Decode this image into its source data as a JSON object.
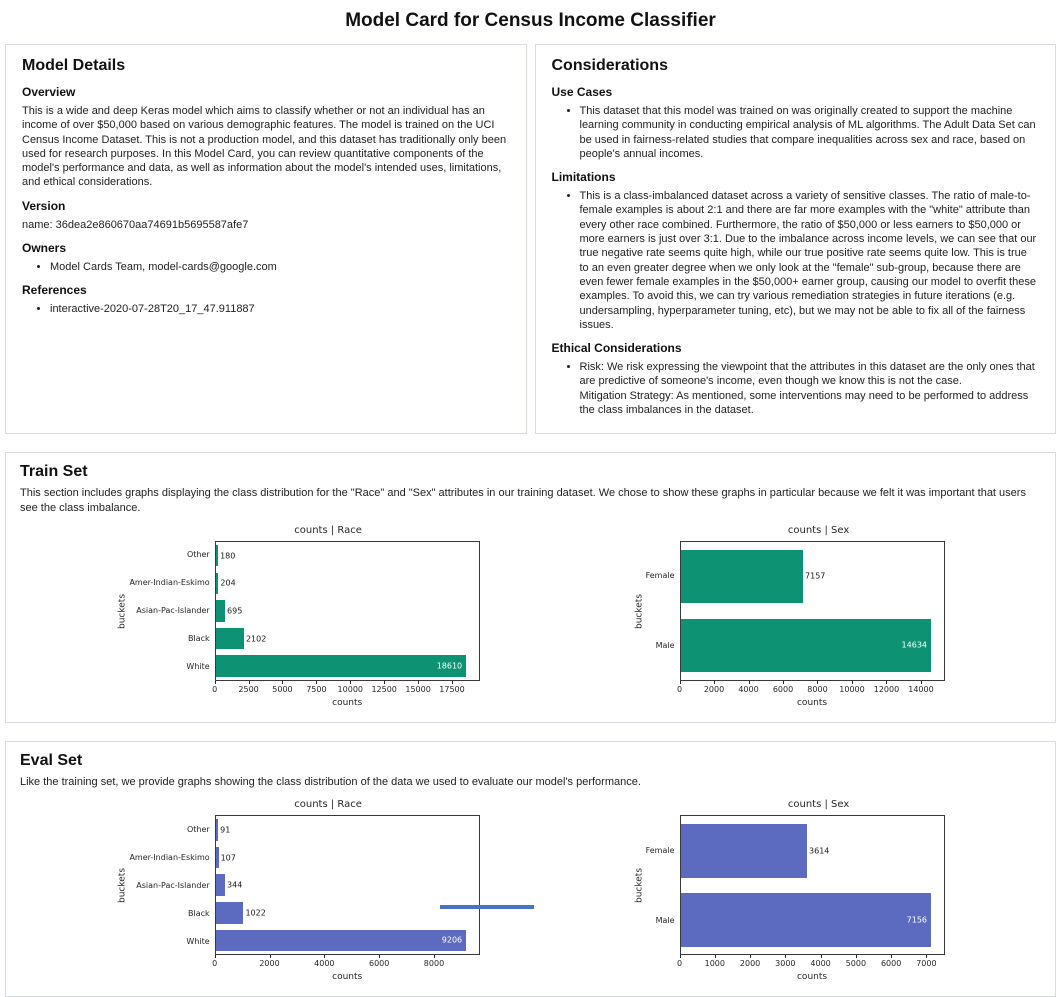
{
  "page": {
    "title": "Model Card for Census Income Classifier"
  },
  "model_details": {
    "title": "Model Details",
    "overview_heading": "Overview",
    "overview_text": "This is a wide and deep Keras model which aims to classify whether or not an individual has an income of over $50,000 based on various demographic features. The model is trained on the UCI Census Income Dataset. This is not a production model, and this dataset has traditionally only been used for research purposes. In this Model Card, you can review quantitative components of the model's performance and data, as well as information about the model's intended uses, limitations, and ethical considerations.",
    "version_heading": "Version",
    "version_text": "name: 36dea2e860670aa74691b5695587afe7",
    "owners_heading": "Owners",
    "owners_items": [
      "Model Cards Team, model-cards@google.com"
    ],
    "references_heading": "References",
    "references_items": [
      "interactive-2020-07-28T20_17_47.911887"
    ]
  },
  "considerations": {
    "title": "Considerations",
    "use_cases_heading": "Use Cases",
    "use_cases_items": [
      "This dataset that this model was trained on was originally created to support the machine learning community in conducting empirical analysis of ML algorithms. The Adult Data Set can be used in fairness-related studies that compare inequalities across sex and race, based on people's annual incomes."
    ],
    "limitations_heading": "Limitations",
    "limitations_items": [
      "This is a class-imbalanced dataset across a variety of sensitive classes. The ratio of male-to-female examples is about 2:1 and there are far more examples with the \"white\" attribute than every other race combined. Furthermore, the ratio of $50,000 or less earners to $50,000 or more earners is just over 3:1. Due to the imbalance across income levels, we can see that our true negative rate seems quite high, while our true positive rate seems quite low. This is true to an even greater degree when we only look at the \"female\" sub-group, because there are even fewer female examples in the $50,000+ earner group, causing our model to overfit these examples. To avoid this, we can try various remediation strategies in future iterations (e.g. undersampling, hyperparameter tuning, etc), but we may not be able to fix all of the fairness issues."
    ],
    "ethical_heading": "Ethical Considerations",
    "ethical_items": [
      "Risk: We risk expressing the viewpoint that the attributes in this dataset are the only ones that are predictive of someone's income, even though we know this is not the case.\nMitigation Strategy: As mentioned, some interventions may need to be performed to address the class imbalances in the dataset."
    ]
  },
  "train_set": {
    "title": "Train Set",
    "description": "This section includes graphs displaying the class distribution for the \"Race\" and \"Sex\" attributes in our training dataset. We chose to show these graphs in particular because we felt it was important that users see the class imbalance."
  },
  "eval_set": {
    "title": "Eval Set",
    "description": "Like the training set, we provide graphs showing the class distribution of the data we used to evaluate our model's performance."
  },
  "chart_data": [
    {
      "id": "train-race",
      "type": "bar",
      "orientation": "horizontal",
      "title": "counts | Race",
      "xlabel": "counts",
      "ylabel": "buckets",
      "categories": [
        "Other",
        "Amer-Indian-Eskimo",
        "Asian-Pac-Islander",
        "Black",
        "White"
      ],
      "values": [
        180,
        204,
        695,
        2102,
        18610
      ],
      "xlim": [
        0,
        19541
      ],
      "xticks": [
        0,
        2500,
        5000,
        7500,
        10000,
        12500,
        15000,
        17500
      ],
      "bar_color": "#0d9373",
      "grid": false,
      "legend": "none"
    },
    {
      "id": "train-sex",
      "type": "bar",
      "orientation": "horizontal",
      "title": "counts | Sex",
      "xlabel": "counts",
      "ylabel": "buckets",
      "categories": [
        "Female",
        "Male"
      ],
      "values": [
        7157,
        14634
      ],
      "xlim": [
        0,
        15366
      ],
      "xticks": [
        0,
        2000,
        4000,
        6000,
        8000,
        10000,
        12000,
        14000
      ],
      "bar_color": "#0d9373",
      "grid": false,
      "legend": "none"
    },
    {
      "id": "eval-race",
      "type": "bar",
      "orientation": "horizontal",
      "title": "counts | Race",
      "xlabel": "counts",
      "ylabel": "buckets",
      "categories": [
        "Other",
        "Amer-Indian-Eskimo",
        "Asian-Pac-Islander",
        "Black",
        "White"
      ],
      "values": [
        91,
        107,
        344,
        1022,
        9206
      ],
      "xlim": [
        0,
        9666
      ],
      "xticks": [
        0,
        2000,
        4000,
        6000,
        8000
      ],
      "bar_color": "#5c6bc0",
      "grid": false,
      "legend": "none"
    },
    {
      "id": "eval-sex",
      "type": "bar",
      "orientation": "horizontal",
      "title": "counts | Sex",
      "xlabel": "counts",
      "ylabel": "buckets",
      "categories": [
        "Female",
        "Male"
      ],
      "values": [
        3614,
        7156
      ],
      "xlim": [
        0,
        7514
      ],
      "xticks": [
        0,
        1000,
        2000,
        3000,
        4000,
        5000,
        6000,
        7000
      ],
      "bar_color": "#5c6bc0",
      "grid": false,
      "legend": "none"
    }
  ]
}
